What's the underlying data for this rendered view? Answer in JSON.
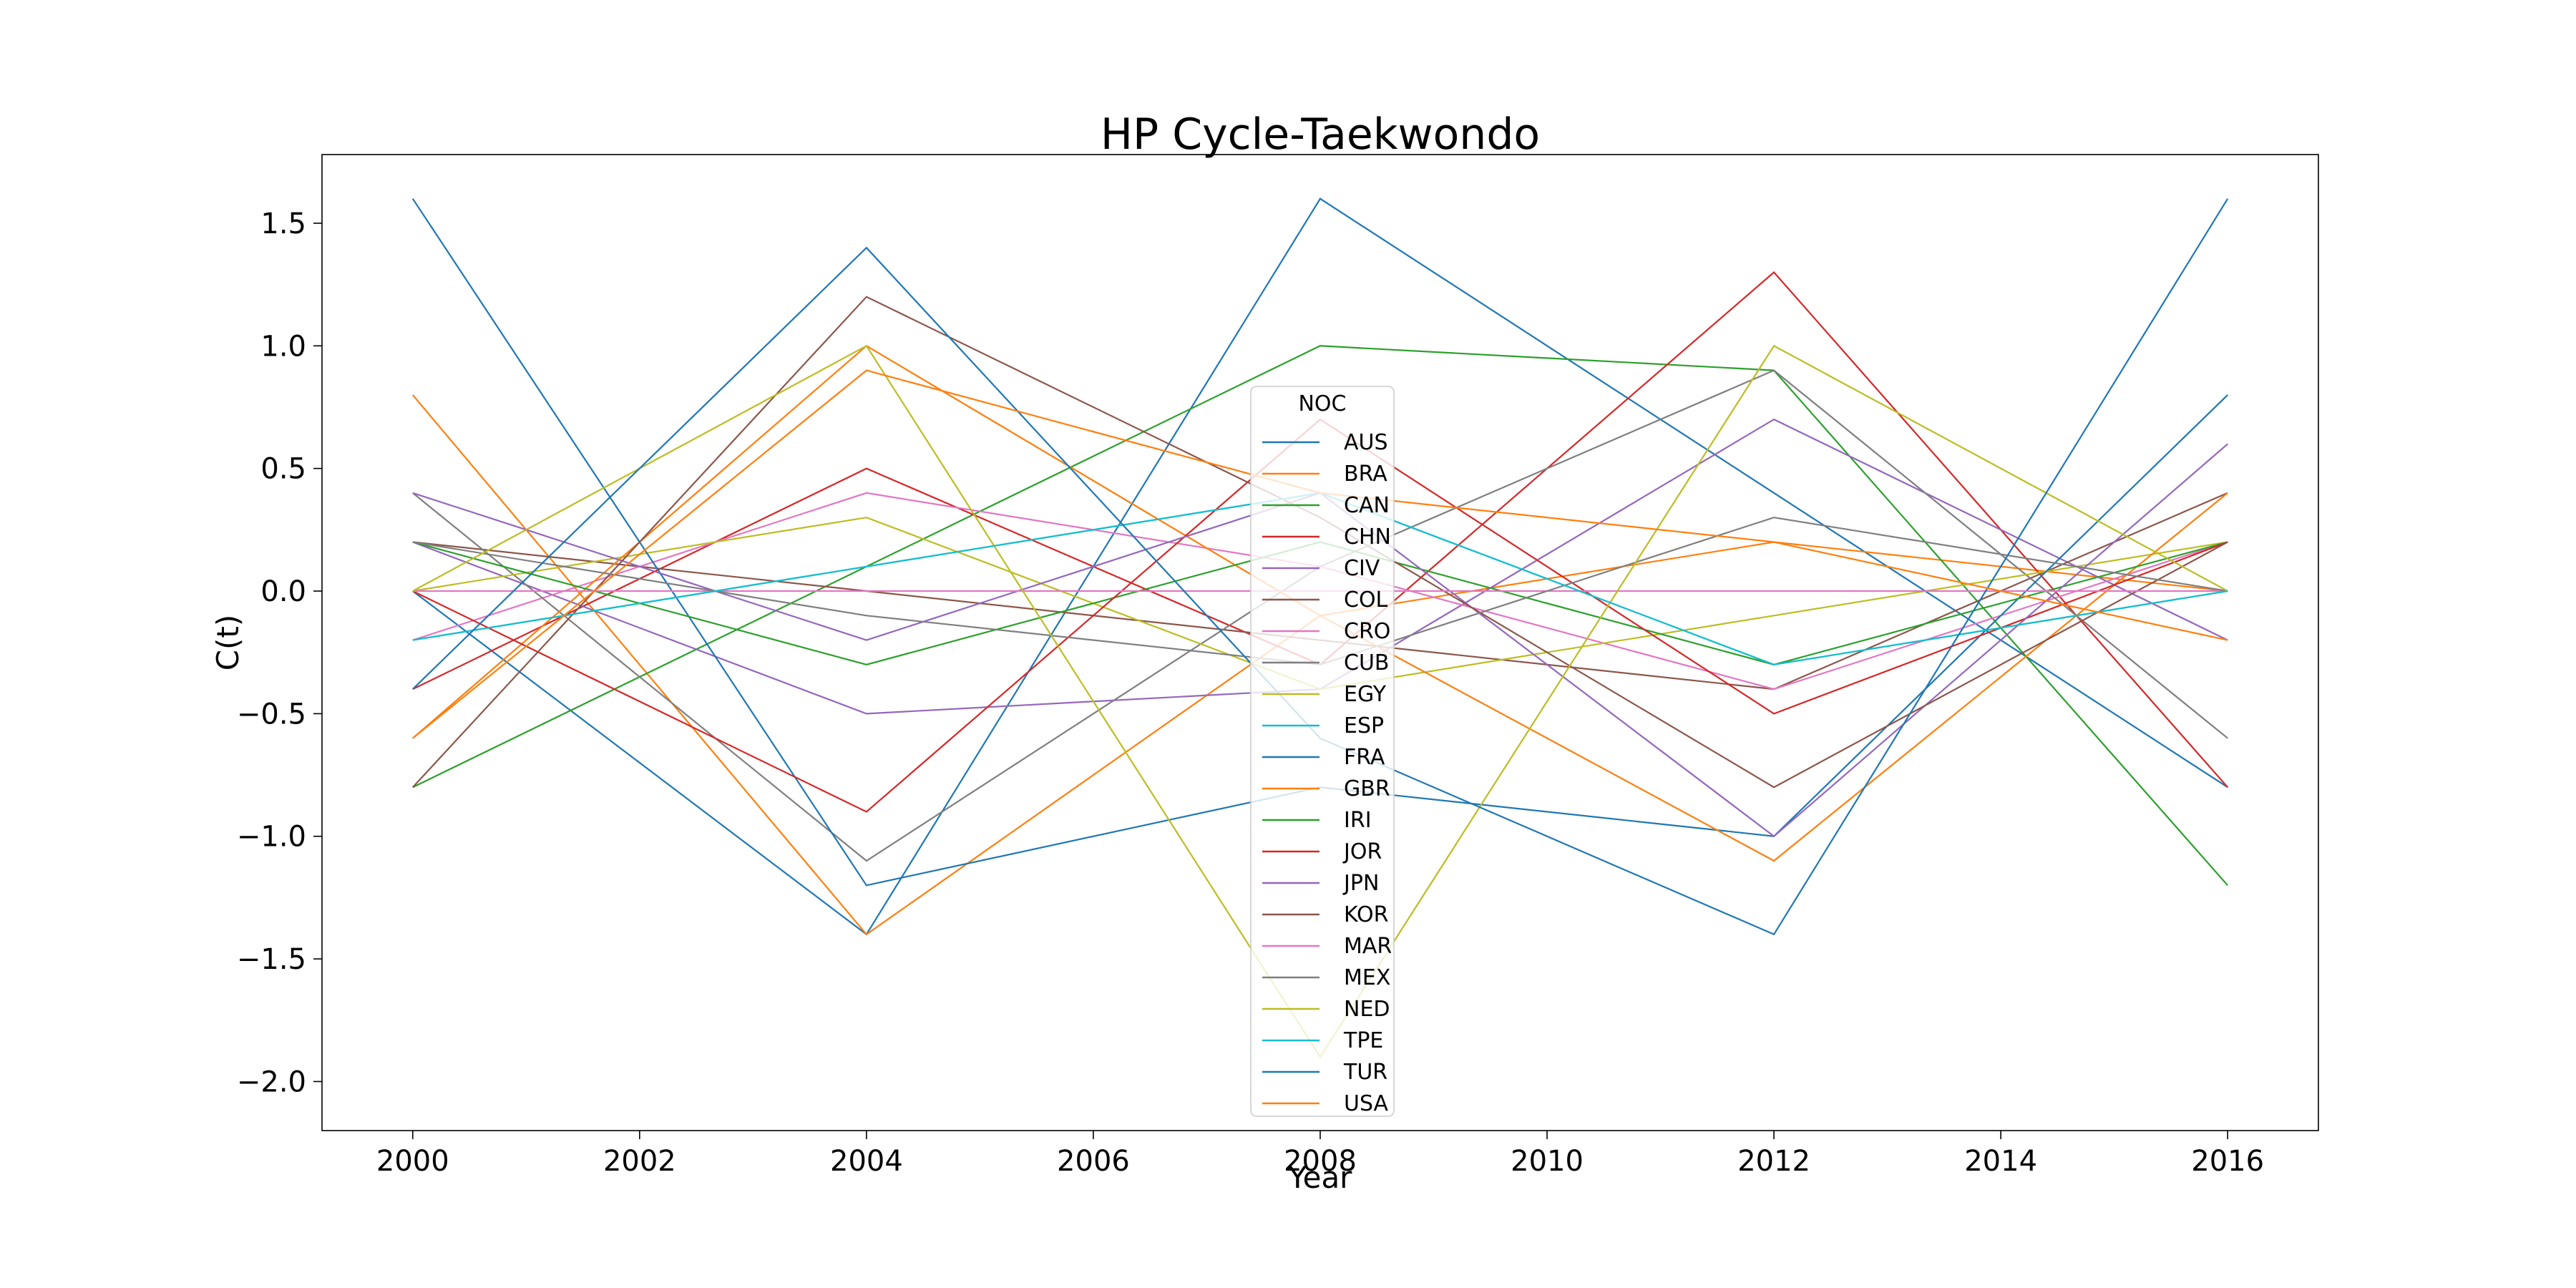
{
  "chart_data": {
    "type": "line",
    "title": "HP Cycle-Taekwondo",
    "xlabel": "Year",
    "ylabel": "C(t)",
    "x": [
      2000,
      2004,
      2008,
      2012,
      2016
    ],
    "xlim": [
      1999.2,
      2016.8
    ],
    "ylim": [
      -2.2,
      1.78
    ],
    "xticks": [
      2000,
      2002,
      2004,
      2006,
      2008,
      2010,
      2012,
      2014,
      2016
    ],
    "xtick_labels": [
      "2000",
      "2002",
      "2004",
      "2006",
      "2008",
      "2010",
      "2012",
      "2014",
      "2016"
    ],
    "yticks": [
      1.5,
      1.0,
      0.5,
      0.0,
      -0.5,
      -1.0,
      -1.5,
      -2.0
    ],
    "ytick_labels": [
      "1.5",
      "1.0",
      "0.5",
      "0.0",
      "−0.5",
      "−1.0",
      "−1.5",
      "−2.0"
    ],
    "grid": false,
    "legend": {
      "title": "NOC",
      "placement": "center"
    },
    "series": [
      {
        "name": "AUS",
        "color": "#1f77b4",
        "values": [
          0.0,
          -1.4,
          1.6,
          0.4,
          -0.8
        ]
      },
      {
        "name": "BRA",
        "color": "#ff7f0e",
        "values": [
          0.8,
          -1.4,
          -0.1,
          0.2,
          0.0
        ]
      },
      {
        "name": "CAN",
        "color": "#2ca02c",
        "values": [
          -0.8,
          0.1,
          1.0,
          0.9,
          -1.2
        ]
      },
      {
        "name": "CHN",
        "color": "#d62728",
        "values": [
          -0.4,
          0.5,
          -0.3,
          1.3,
          -0.8
        ]
      },
      {
        "name": "CIV",
        "color": "#9467bd",
        "values": [
          0.2,
          -0.5,
          -0.4,
          0.7,
          -0.2
        ]
      },
      {
        "name": "COL",
        "color": "#8c564b",
        "values": [
          0.2,
          0.0,
          -0.2,
          -0.4,
          0.4
        ]
      },
      {
        "name": "CRO",
        "color": "#e377c2",
        "values": [
          -0.2,
          0.4,
          0.1,
          -0.4,
          0.2
        ]
      },
      {
        "name": "CUB",
        "color": "#7f7f7f",
        "values": [
          0.4,
          -1.1,
          0.1,
          0.9,
          -0.6
        ]
      },
      {
        "name": "EGY",
        "color": "#bcbd22",
        "values": [
          0.0,
          0.3,
          -0.4,
          -0.1,
          0.2
        ]
      },
      {
        "name": "ESP",
        "color": "#17becf",
        "values": [
          -0.2,
          0.1,
          0.4,
          -0.3,
          0.0
        ]
      },
      {
        "name": "FRA",
        "color": "#1f77b4",
        "values": [
          1.6,
          -1.2,
          -0.8,
          -1.0,
          0.8
        ]
      },
      {
        "name": "GBR",
        "color": "#ff7f0e",
        "values": [
          -0.6,
          1.0,
          -0.1,
          -1.1,
          0.4
        ]
      },
      {
        "name": "IRI",
        "color": "#2ca02c",
        "values": [
          0.2,
          -0.3,
          0.2,
          -0.3,
          0.2
        ]
      },
      {
        "name": "JOR",
        "color": "#d62728",
        "values": [
          0.0,
          -0.9,
          0.7,
          -0.5,
          0.2
        ]
      },
      {
        "name": "JPN",
        "color": "#9467bd",
        "values": [
          0.4,
          -0.2,
          0.4,
          -1.0,
          0.6
        ]
      },
      {
        "name": "KOR",
        "color": "#8c564b",
        "values": [
          -0.8,
          1.2,
          0.3,
          -0.8,
          0.2
        ]
      },
      {
        "name": "MAR",
        "color": "#e377c2",
        "values": [
          0.0,
          0.0,
          0.0,
          0.0,
          0.0
        ]
      },
      {
        "name": "MEX",
        "color": "#7f7f7f",
        "values": [
          0.2,
          -0.1,
          -0.3,
          0.3,
          0.0
        ]
      },
      {
        "name": "NED",
        "color": "#bcbd22",
        "values": [
          0.0,
          1.0,
          -1.9,
          1.0,
          0.0
        ]
      },
      {
        "name": "TPE",
        "color": "#17becf",
        "values": [
          -0.2,
          0.1,
          0.4,
          -0.3,
          0.0
        ]
      },
      {
        "name": "TUR",
        "color": "#1f77b4",
        "values": [
          -0.4,
          1.4,
          -0.6,
          -1.4,
          1.6
        ]
      },
      {
        "name": "USA",
        "color": "#ff7f0e",
        "values": [
          -0.6,
          0.9,
          0.4,
          0.2,
          -0.2
        ]
      }
    ]
  }
}
